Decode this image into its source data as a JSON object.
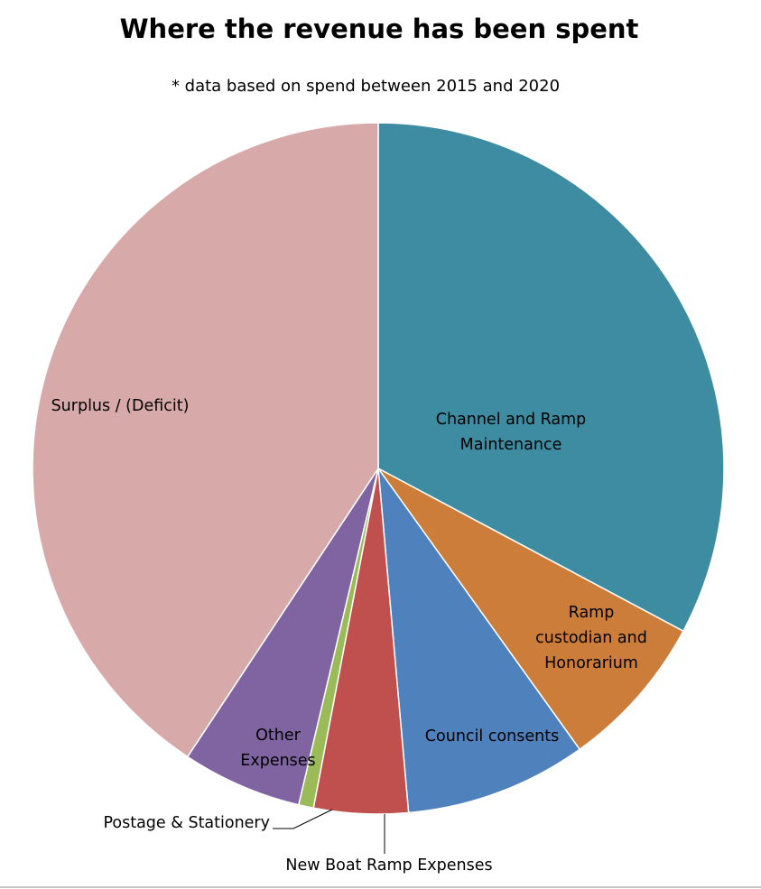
{
  "chart_data": {
    "type": "pie",
    "title": "Where the revenue has been spent",
    "subtitle": "* data based on spend between 2015 and 2020",
    "slices": [
      {
        "label": "Channel and Ramp Maintenance",
        "lines": [
          "Channel and Ramp",
          "Maintenance"
        ],
        "value": 32.8,
        "color": "#3D8CA1"
      },
      {
        "label": "Ramp custodian and Honorarium",
        "lines": [
          "Ramp",
          "custodian and",
          "Honorarium"
        ],
        "value": 7.3,
        "color": "#CC7D3A"
      },
      {
        "label": "Council consents",
        "lines": [
          "Council consents"
        ],
        "value": 8.5,
        "color": "#4F81BD"
      },
      {
        "label": "New Boat Ramp Expenses",
        "lines": [
          "New Boat Ramp Expenses"
        ],
        "value": 4.4,
        "color": "#C0504D"
      },
      {
        "label": "Postage & Stationery",
        "lines": [
          "Postage & Stationery"
        ],
        "value": 0.7,
        "color": "#9BBB59"
      },
      {
        "label": "Other Expenses",
        "lines": [
          "Other",
          "Expenses"
        ],
        "value": 5.6,
        "color": "#8064A2"
      },
      {
        "label": "Surplus / (Deficit)",
        "lines": [
          "Surplus / (Deficit)"
        ],
        "value": 40.7,
        "color": "#D8A9A9"
      }
    ],
    "start_angle_deg": 0,
    "direction": "clockwise",
    "legend": "none",
    "data_labels": "category name"
  }
}
